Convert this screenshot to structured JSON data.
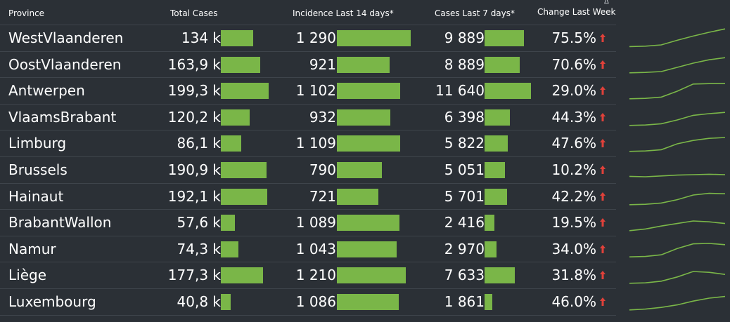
{
  "headers": {
    "province": "Province",
    "total_cases": "Total Cases",
    "incidence": "Incidence Last 14 days*",
    "cases7": "Cases Last 7 days*",
    "change": "Change Last Week",
    "delta": "Δ"
  },
  "colors": {
    "background": "#2b3036",
    "bar": "#7ab648",
    "spark": "#7ab648",
    "arrow": "#e0413a"
  },
  "icons": {
    "increase": "red-up-arrow-icon"
  },
  "rows": [
    {
      "province": "WestVlaanderen",
      "total_cases": "134 k",
      "total_value": 134,
      "incidence": "1 290",
      "incidence_value": 1290,
      "cases7": "9 889",
      "cases7_value": 9889,
      "change": "75.5%",
      "trend": [
        0.12,
        0.14,
        0.2,
        0.42,
        0.62,
        0.8,
        0.96
      ]
    },
    {
      "province": "OostVlaanderen",
      "total_cases": "163,9 k",
      "total_value": 163.9,
      "incidence": "921",
      "incidence_value": 921,
      "cases7": "8 889",
      "cases7_value": 8889,
      "change": "70.6%",
      "trend": [
        0.14,
        0.16,
        0.2,
        0.4,
        0.6,
        0.76,
        0.86
      ]
    },
    {
      "province": "Antwerpen",
      "total_cases": "199,3 k",
      "total_value": 199.3,
      "incidence": "1 102",
      "incidence_value": 1102,
      "cases7": "11 640",
      "cases7_value": 11640,
      "change": "29.0%",
      "trend": [
        0.14,
        0.16,
        0.22,
        0.5,
        0.84,
        0.86,
        0.86
      ]
    },
    {
      "province": "VlaamsBrabant",
      "total_cases": "120,2 k",
      "total_value": 120.2,
      "incidence": "932",
      "incidence_value": 932,
      "cases7": "6 398",
      "cases7_value": 6398,
      "change": "44.3%",
      "trend": [
        0.14,
        0.16,
        0.22,
        0.4,
        0.62,
        0.7,
        0.76
      ]
    },
    {
      "province": "Limburg",
      "total_cases": "86,1 k",
      "total_value": 86.1,
      "incidence": "1 109",
      "incidence_value": 1109,
      "cases7": "5 822",
      "cases7_value": 5822,
      "change": "47.6%",
      "trend": [
        0.14,
        0.16,
        0.22,
        0.5,
        0.66,
        0.76,
        0.8
      ]
    },
    {
      "province": "Brussels",
      "total_cases": "190,9 k",
      "total_value": 190.9,
      "incidence": "790",
      "incidence_value": 790,
      "cases7": "5 051",
      "cases7_value": 5051,
      "change": "10.2%",
      "trend": [
        0.22,
        0.2,
        0.24,
        0.28,
        0.3,
        0.32,
        0.3
      ]
    },
    {
      "province": "Hainaut",
      "total_cases": "192,1 k",
      "total_value": 192.1,
      "incidence": "721",
      "incidence_value": 721,
      "cases7": "5 701",
      "cases7_value": 5701,
      "change": "42.2%",
      "trend": [
        0.14,
        0.16,
        0.22,
        0.38,
        0.6,
        0.68,
        0.66
      ]
    },
    {
      "province": "BrabantWallon",
      "total_cases": "57,6 k",
      "total_value": 57.6,
      "incidence": "1 089",
      "incidence_value": 1089,
      "cases7": "2 416",
      "cases7_value": 2416,
      "change": "19.5%",
      "trend": [
        0.14,
        0.22,
        0.36,
        0.48,
        0.6,
        0.56,
        0.48
      ]
    },
    {
      "province": "Namur",
      "total_cases": "74,3 k",
      "total_value": 74.3,
      "incidence": "1 043",
      "incidence_value": 1043,
      "cases7": "2 970",
      "cases7_value": 2970,
      "change": "34.0%",
      "trend": [
        0.16,
        0.18,
        0.26,
        0.56,
        0.78,
        0.8,
        0.74
      ]
    },
    {
      "province": "Liège",
      "total_cases": "177,3 k",
      "total_value": 177.3,
      "incidence": "1 210",
      "incidence_value": 1210,
      "cases7": "7 633",
      "cases7_value": 7633,
      "change": "31.8%",
      "trend": [
        0.14,
        0.16,
        0.24,
        0.44,
        0.7,
        0.66,
        0.56
      ]
    },
    {
      "province": "Luxembourg",
      "total_cases": "40,8 k",
      "total_value": 40.8,
      "incidence": "1 086",
      "incidence_value": 1086,
      "cases7": "1 861",
      "cases7_value": 1861,
      "change": "46.0%",
      "trend": [
        0.14,
        0.18,
        0.26,
        0.38,
        0.56,
        0.7,
        0.78
      ]
    }
  ]
}
